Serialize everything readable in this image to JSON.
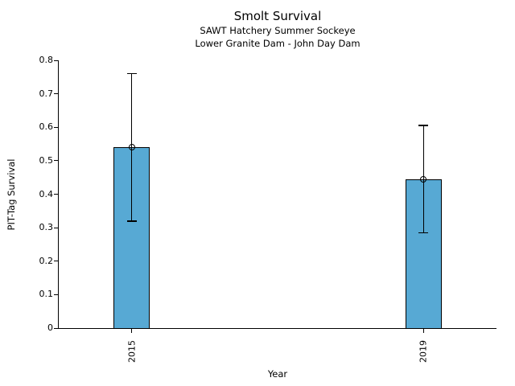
{
  "chart_data": {
    "type": "bar",
    "title": "Smolt Survival",
    "subtitle1": "SAWT Hatchery Summer Sockeye",
    "subtitle2": "Lower Granite Dam - John Day Dam",
    "xlabel": "Year",
    "ylabel": "PIT-Tag Survival",
    "xlim": [
      2014,
      2020
    ],
    "ylim": [
      0,
      0.8
    ],
    "yticks": [
      0,
      0.1,
      0.2,
      0.3,
      0.4,
      0.5,
      0.6,
      0.7,
      0.8
    ],
    "ytick_labels": [
      "0",
      "0.1",
      "0.2",
      "0.3",
      "0.4",
      "0.5",
      "0.6",
      "0.7",
      "0.8"
    ],
    "grid": false,
    "legend": "none",
    "bar_color": "#57A9D4",
    "bar_edge_color": "#000000",
    "marker": "open-circle",
    "bar_width_years": 0.5,
    "series": [
      {
        "name": "PIT-Tag Survival",
        "points": [
          {
            "x": 2015,
            "label": "2015",
            "value": 0.54,
            "err_low": 0.32,
            "err_high": 0.76
          },
          {
            "x": 2019,
            "label": "2019",
            "value": 0.445,
            "err_low": 0.285,
            "err_high": 0.605
          }
        ]
      }
    ]
  }
}
